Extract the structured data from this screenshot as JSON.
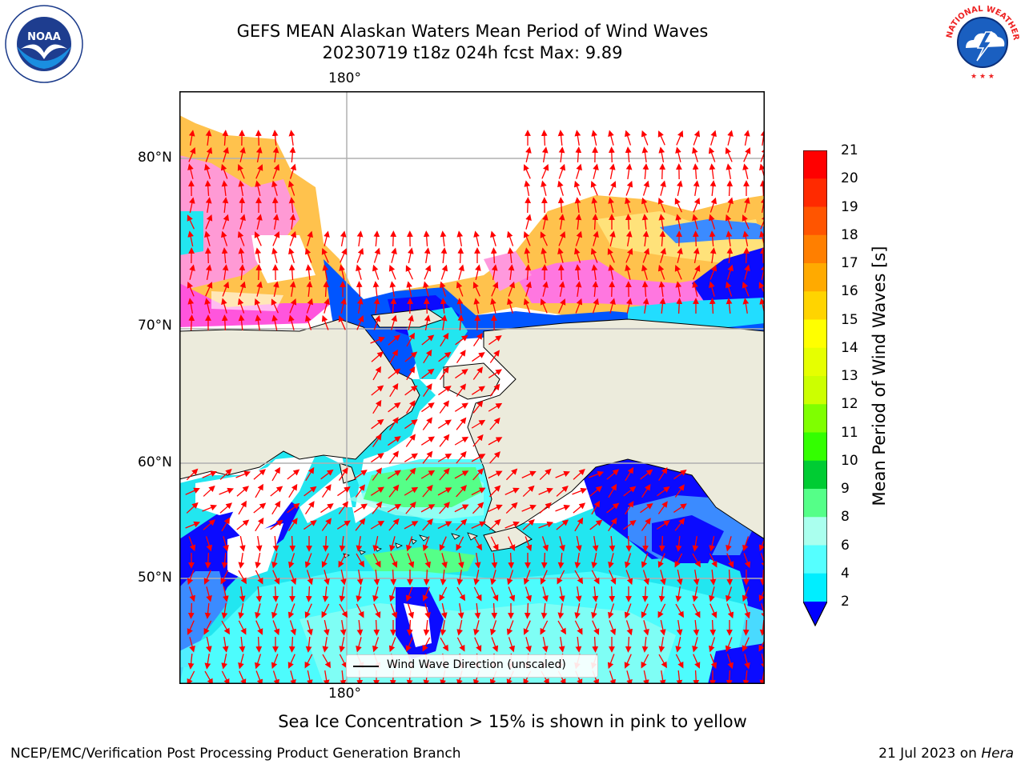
{
  "title": {
    "line1": "GEFS MEAN Alaskan Waters Mean Period of Wind Waves",
    "line2": "20230719 t18z 024h fcst   Max: 9.89"
  },
  "map": {
    "lon_label_top": "180°",
    "lon_label_bottom": "180°",
    "lat_labels": [
      "80°N",
      "70°N",
      "60°N",
      "50°N"
    ],
    "legend": "Wind Wave Direction (unscaled)",
    "colors": {
      "land": "#ecebdc",
      "arrow": "#ff0000",
      "grid": "#b0b0b0"
    }
  },
  "colorbar": {
    "title": "Mean Period of Wind Waves [s]",
    "ticks": [
      "21",
      "20",
      "19",
      "18",
      "17",
      "16",
      "15",
      "14",
      "13",
      "12",
      "11",
      "10",
      "9",
      "8",
      "6",
      "4",
      "2"
    ],
    "colors": [
      "#ff0000",
      "#ff2a00",
      "#ff5500",
      "#ff7f00",
      "#ffaa00",
      "#ffd400",
      "#ffff00",
      "#e6ff00",
      "#ccff00",
      "#7fff00",
      "#33ff00",
      "#00cc33",
      "#55ff88",
      "#aaffee",
      "#55ffff",
      "#00eeff",
      "#0088ff",
      "#0000ff"
    ]
  },
  "note": "Sea Ice Concentration > 15% is shown in pink to yellow",
  "footer": {
    "left": "NCEP/EMC/Verification Post Processing Product Generation Branch",
    "right_date": "21 Jul 2023 on",
    "right_machine": "Hera"
  },
  "logos": {
    "left": "NOAA",
    "right": "NATIONAL WEATHER SERVICE"
  }
}
